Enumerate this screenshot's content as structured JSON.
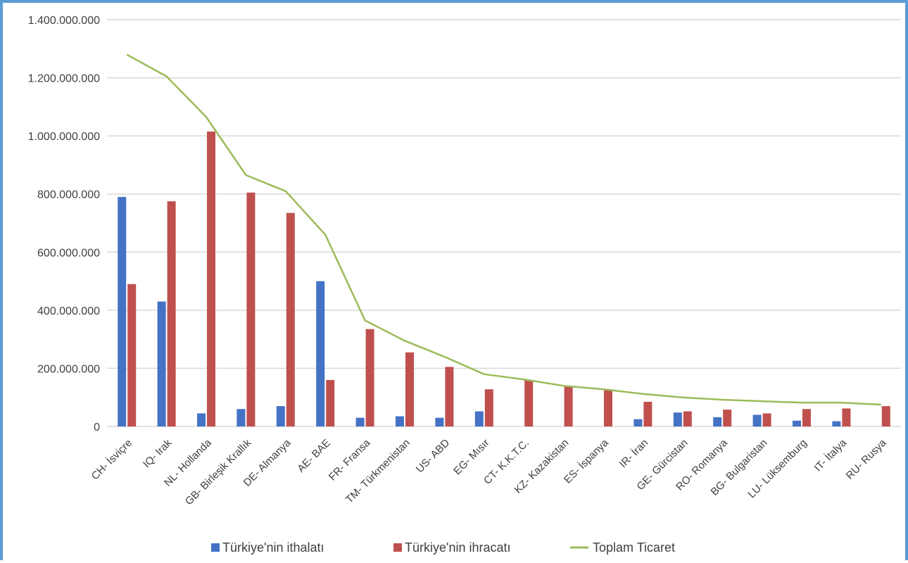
{
  "chart_data": {
    "type": "bar",
    "categories": [
      "CH- İsviçre",
      "IQ- Irak",
      "NL- Hollanda",
      "GB- Birleşik Krallık",
      "DE- Almanya",
      "AE- BAE",
      "FR- Fransa",
      "TM- Türkmenistan",
      "US- ABD",
      "EG- Mısır",
      "CT- K.K.T.C.",
      "KZ- Kazakistan",
      "ES- İspanya",
      "IR- İran",
      "GE- Gürcistan",
      "RO- Romanya",
      "BG- Bulgaristan",
      "LU- Lüksemburg",
      "IT- İtalya",
      "RU- Rusya"
    ],
    "ylim": [
      0,
      1400000000
    ],
    "yticks": [
      {
        "value": 0,
        "label": "0"
      },
      {
        "value": 200000000,
        "label": "200.000.000"
      },
      {
        "value": 400000000,
        "label": "400.000.000"
      },
      {
        "value": 600000000,
        "label": "600.000.000"
      },
      {
        "value": 800000000,
        "label": "800.000.000"
      },
      {
        "value": 1000000000,
        "label": "1.000.000.000"
      },
      {
        "value": 1200000000,
        "label": "1.200.000.000"
      },
      {
        "value": 1400000000,
        "label": "1.400.000.000"
      }
    ],
    "grid": true,
    "legend_position": "bottom",
    "series": [
      {
        "name": "Türkiye'nin ithalatı",
        "kind": "bar",
        "color": "#4472c4",
        "values": [
          790000000,
          430000000,
          45000000,
          60000000,
          70000000,
          500000000,
          30000000,
          35000000,
          30000000,
          52000000,
          0,
          0,
          0,
          25000000,
          48000000,
          32000000,
          40000000,
          20000000,
          18000000,
          0
        ]
      },
      {
        "name": "Türkiye'nin ihracatı",
        "kind": "bar",
        "color": "#c0504d",
        "values": [
          490000000,
          775000000,
          1015000000,
          805000000,
          735000000,
          160000000,
          335000000,
          255000000,
          205000000,
          128000000,
          160000000,
          140000000,
          128000000,
          85000000,
          52000000,
          58000000,
          45000000,
          60000000,
          62000000,
          70000000
        ]
      },
      {
        "name": "Toplam Ticaret",
        "kind": "line",
        "color": "#9bbb59",
        "values": [
          1280000000,
          1205000000,
          1065000000,
          865000000,
          810000000,
          660000000,
          365000000,
          295000000,
          240000000,
          180000000,
          162000000,
          140000000,
          128000000,
          112000000,
          100000000,
          92000000,
          87000000,
          82000000,
          82000000,
          75000000
        ]
      }
    ]
  }
}
